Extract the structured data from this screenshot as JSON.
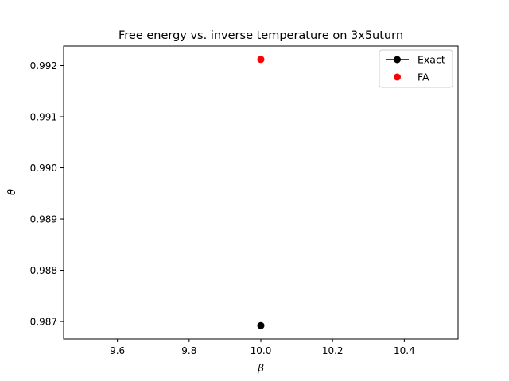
{
  "chart_data": {
    "type": "scatter",
    "title": "Free energy vs. inverse temperature on 3x5uturn",
    "xlabel": "β",
    "ylabel": "θ",
    "xlim": [
      9.45,
      10.55
    ],
    "ylim": [
      0.98666,
      0.99238
    ],
    "xticks": [
      9.6,
      9.8,
      10.0,
      10.2,
      10.4
    ],
    "xtick_labels": [
      "9.6",
      "9.8",
      "10.0",
      "10.2",
      "10.4"
    ],
    "yticks": [
      0.987,
      0.988,
      0.989,
      0.99,
      0.991,
      0.992
    ],
    "ytick_labels": [
      "0.987",
      "0.988",
      "0.989",
      "0.990",
      "0.991",
      "0.992"
    ],
    "grid": false,
    "legend_position": "top-right",
    "series": [
      {
        "name": "Exact",
        "color": "#000000",
        "marker": "circle",
        "line": true,
        "points": [
          {
            "x": 10.0,
            "y": 0.98692
          }
        ]
      },
      {
        "name": "FA",
        "color": "#ff0000",
        "marker": "circle",
        "line": false,
        "points": [
          {
            "x": 10.0,
            "y": 0.99212
          }
        ]
      }
    ]
  }
}
